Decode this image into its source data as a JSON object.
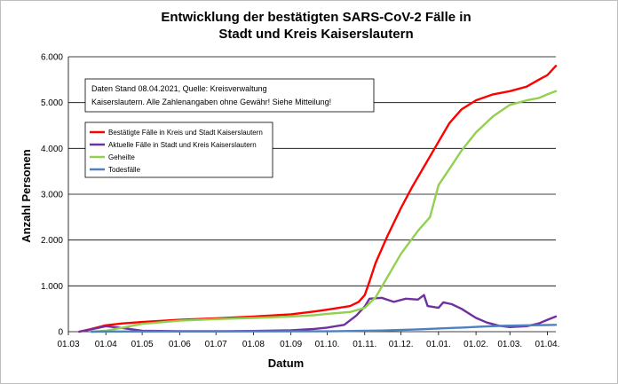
{
  "chart_data": {
    "type": "line",
    "title_line1": "Entwicklung der bestätigten SARS-CoV-2 Fälle in",
    "title_line2": "Stadt und Kreis Kaiserslautern",
    "xlabel": "Datum",
    "ylabel": "Anzahl Personen",
    "note_line1": "Daten Stand 08.04.2021, Quelle: Kreisverwaltung",
    "note_line2": "Kaiserslautern. Alle Zahlenangaben ohne Gewähr! Siehe Mitteilung!",
    "ylim": [
      0,
      6000
    ],
    "yticks": [
      0,
      1000,
      2000,
      3000,
      4000,
      5000,
      6000
    ],
    "ytick_labels": [
      "0",
      "1.000",
      "2.000",
      "3.000",
      "4.000",
      "5.000",
      "6.000"
    ],
    "xlim": [
      "2020-03-01",
      "2021-04-08"
    ],
    "xticks": [
      "2020-03-01",
      "2020-04-01",
      "2020-05-01",
      "2020-06-01",
      "2020-07-01",
      "2020-08-01",
      "2020-09-01",
      "2020-10-01",
      "2020-11-01",
      "2020-12-01",
      "2021-01-01",
      "2021-02-01",
      "2021-03-01",
      "2021-04-01"
    ],
    "xtick_labels": [
      "01.03",
      "01.04",
      "01.05",
      "01.06",
      "01.07",
      "01.08",
      "01.09",
      "01.10.",
      "01.11.",
      "01.12.",
      "01.01.",
      "01.02.",
      "01.03.",
      "01.04."
    ],
    "grid": "horizontal",
    "legend_position": "top-left",
    "series": [
      {
        "name": "Bestätigte Fälle in Kreis und Stadt Kaiserslautern",
        "color": "#ff0000",
        "points": [
          [
            "2020-03-10",
            0
          ],
          [
            "2020-03-20",
            60
          ],
          [
            "2020-04-01",
            140
          ],
          [
            "2020-04-15",
            180
          ],
          [
            "2020-05-01",
            210
          ],
          [
            "2020-06-01",
            260
          ],
          [
            "2020-07-01",
            290
          ],
          [
            "2020-08-01",
            330
          ],
          [
            "2020-09-01",
            380
          ],
          [
            "2020-09-20",
            440
          ],
          [
            "2020-10-01",
            480
          ],
          [
            "2020-10-20",
            560
          ],
          [
            "2020-10-27",
            650
          ],
          [
            "2020-11-01",
            800
          ],
          [
            "2020-11-05",
            1100
          ],
          [
            "2020-11-10",
            1500
          ],
          [
            "2020-11-20",
            2100
          ],
          [
            "2020-12-01",
            2700
          ],
          [
            "2020-12-10",
            3150
          ],
          [
            "2020-12-20",
            3600
          ],
          [
            "2020-12-31",
            4100
          ],
          [
            "2021-01-10",
            4550
          ],
          [
            "2021-01-20",
            4850
          ],
          [
            "2021-02-01",
            5050
          ],
          [
            "2021-02-15",
            5180
          ],
          [
            "2021-03-01",
            5250
          ],
          [
            "2021-03-15",
            5350
          ],
          [
            "2021-03-25",
            5500
          ],
          [
            "2021-04-01",
            5600
          ],
          [
            "2021-04-08",
            5800
          ]
        ]
      },
      {
        "name": "Aktuelle Fälle in Stadt und Kreis Kaiserslautern",
        "color": "#7030a0",
        "points": [
          [
            "2020-03-10",
            0
          ],
          [
            "2020-03-25",
            80
          ],
          [
            "2020-04-01",
            120
          ],
          [
            "2020-04-15",
            80
          ],
          [
            "2020-05-01",
            20
          ],
          [
            "2020-06-01",
            10
          ],
          [
            "2020-07-01",
            10
          ],
          [
            "2020-08-01",
            15
          ],
          [
            "2020-09-01",
            30
          ],
          [
            "2020-09-20",
            60
          ],
          [
            "2020-10-01",
            90
          ],
          [
            "2020-10-15",
            150
          ],
          [
            "2020-10-25",
            350
          ],
          [
            "2020-11-01",
            550
          ],
          [
            "2020-11-05",
            720
          ],
          [
            "2020-11-15",
            740
          ],
          [
            "2020-11-25",
            650
          ],
          [
            "2020-12-05",
            720
          ],
          [
            "2020-12-15",
            700
          ],
          [
            "2020-12-20",
            800
          ],
          [
            "2020-12-23",
            560
          ],
          [
            "2021-01-01",
            520
          ],
          [
            "2021-01-05",
            640
          ],
          [
            "2021-01-12",
            600
          ],
          [
            "2021-01-20",
            500
          ],
          [
            "2021-02-01",
            300
          ],
          [
            "2021-02-10",
            200
          ],
          [
            "2021-02-20",
            130
          ],
          [
            "2021-03-01",
            100
          ],
          [
            "2021-03-15",
            120
          ],
          [
            "2021-03-25",
            180
          ],
          [
            "2021-04-01",
            260
          ],
          [
            "2021-04-08",
            330
          ]
        ]
      },
      {
        "name": "Geheilte",
        "color": "#92d050",
        "points": [
          [
            "2020-03-20",
            0
          ],
          [
            "2020-04-01",
            20
          ],
          [
            "2020-04-15",
            90
          ],
          [
            "2020-05-01",
            170
          ],
          [
            "2020-06-01",
            240
          ],
          [
            "2020-07-01",
            275
          ],
          [
            "2020-08-01",
            300
          ],
          [
            "2020-09-01",
            330
          ],
          [
            "2020-09-20",
            360
          ],
          [
            "2020-10-01",
            390
          ],
          [
            "2020-10-20",
            430
          ],
          [
            "2020-11-01",
            520
          ],
          [
            "2020-11-10",
            750
          ],
          [
            "2020-11-20",
            1200
          ],
          [
            "2020-12-01",
            1700
          ],
          [
            "2020-12-15",
            2200
          ],
          [
            "2020-12-25",
            2500
          ],
          [
            "2021-01-01",
            3200
          ],
          [
            "2021-01-10",
            3550
          ],
          [
            "2021-01-20",
            3950
          ],
          [
            "2021-02-01",
            4350
          ],
          [
            "2021-02-15",
            4700
          ],
          [
            "2021-03-01",
            4950
          ],
          [
            "2021-03-15",
            5050
          ],
          [
            "2021-03-25",
            5100
          ],
          [
            "2021-04-01",
            5180
          ],
          [
            "2021-04-08",
            5250
          ]
        ]
      },
      {
        "name": "Todesfälle",
        "color": "#4f81bd",
        "points": [
          [
            "2020-03-20",
            0
          ],
          [
            "2020-04-15",
            3
          ],
          [
            "2020-06-01",
            5
          ],
          [
            "2020-10-01",
            8
          ],
          [
            "2020-11-15",
            25
          ],
          [
            "2020-12-15",
            50
          ],
          [
            "2021-01-01",
            70
          ],
          [
            "2021-01-20",
            90
          ],
          [
            "2021-02-05",
            110
          ],
          [
            "2021-02-20",
            125
          ],
          [
            "2021-03-10",
            135
          ],
          [
            "2021-04-08",
            150
          ]
        ]
      }
    ]
  }
}
